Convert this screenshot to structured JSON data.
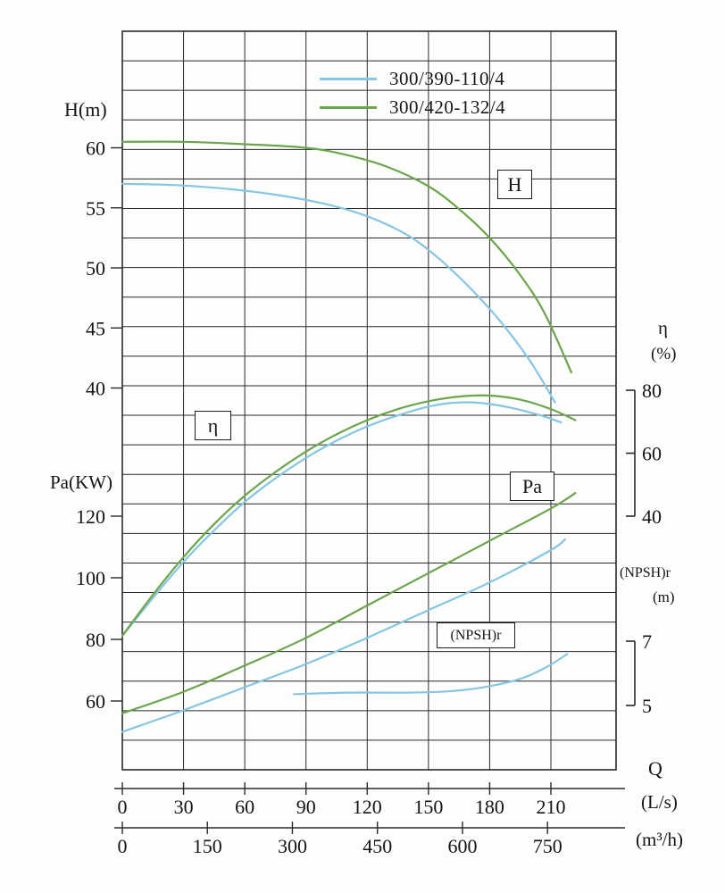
{
  "page": {
    "background": "#fdfdfb",
    "ink": "#2a2a2a"
  },
  "chart_data": {
    "type": "line",
    "title": "",
    "legend": [
      {
        "label": "300/390-110/4",
        "color": "#85c6e4"
      },
      {
        "label": "300/420-132/4",
        "color": "#6ba54e"
      }
    ],
    "x_axis": {
      "label": "Q",
      "primary_unit": {
        "label": "(L/s)",
        "ticks": [
          0,
          30,
          60,
          90,
          120,
          150,
          180,
          210
        ]
      },
      "secondary_unit": {
        "label": "(m³/h)",
        "ticks": [
          0,
          150,
          300,
          450,
          600,
          750
        ]
      },
      "range_ls": [
        0,
        242
      ]
    },
    "y_axes": {
      "H": {
        "title": "H(m)",
        "ticks": [
          60,
          55,
          50,
          45,
          40
        ],
        "range": [
          40,
          60
        ]
      },
      "Pa": {
        "title": "Pa(KW)",
        "ticks": [
          120,
          100,
          80,
          60
        ],
        "range": [
          60,
          120
        ]
      },
      "eta": {
        "title": "η",
        "unit": "(%)",
        "ticks": [
          80,
          60,
          40
        ],
        "range": [
          40,
          80
        ]
      },
      "npsh": {
        "title": "(NPSH)r",
        "unit": "(m)",
        "ticks": [
          7,
          5
        ],
        "range": [
          5,
          7
        ]
      }
    },
    "inplot_labels": [
      {
        "text": "H"
      },
      {
        "text": "η"
      },
      {
        "text": "Pa"
      },
      {
        "text": "(NPSH)r"
      }
    ],
    "grid": {
      "on": true,
      "h_divisions": 25
    },
    "series": [
      {
        "name": "H 300/390-110/4",
        "axis": "H",
        "color": "#85c6e4",
        "points": [
          [
            0,
            57.0
          ],
          [
            25,
            56.9
          ],
          [
            50,
            56.6
          ],
          [
            75,
            56.1
          ],
          [
            100,
            55.3
          ],
          [
            120,
            54.3
          ],
          [
            140,
            52.7
          ],
          [
            155,
            50.8
          ],
          [
            170,
            48.4
          ],
          [
            185,
            45.6
          ],
          [
            200,
            42.2
          ],
          [
            212,
            38.8
          ]
        ]
      },
      {
        "name": "H 300/420-132/4",
        "axis": "H",
        "color": "#6ba54e",
        "points": [
          [
            0,
            60.5
          ],
          [
            30,
            60.5
          ],
          [
            60,
            60.3
          ],
          [
            90,
            60.0
          ],
          [
            110,
            59.4
          ],
          [
            130,
            58.4
          ],
          [
            150,
            56.8
          ],
          [
            165,
            54.9
          ],
          [
            180,
            52.5
          ],
          [
            195,
            49.4
          ],
          [
            207,
            46.2
          ],
          [
            220,
            41.3
          ]
        ]
      },
      {
        "name": "eta 300/390-110/4",
        "axis": "eta",
        "color": "#85c6e4",
        "points": [
          [
            0,
            2
          ],
          [
            15,
            14
          ],
          [
            30,
            25.5
          ],
          [
            45,
            35.5
          ],
          [
            60,
            44.5
          ],
          [
            75,
            52
          ],
          [
            90,
            58.5
          ],
          [
            105,
            64
          ],
          [
            120,
            68.5
          ],
          [
            135,
            72
          ],
          [
            150,
            74.8
          ],
          [
            162,
            76
          ],
          [
            175,
            76
          ],
          [
            190,
            74.5
          ],
          [
            205,
            72
          ],
          [
            215,
            69.8
          ]
        ]
      },
      {
        "name": "eta 300/420-132/4",
        "axis": "eta",
        "color": "#6ba54e",
        "points": [
          [
            0,
            2
          ],
          [
            15,
            15
          ],
          [
            30,
            27
          ],
          [
            45,
            37.5
          ],
          [
            60,
            46.5
          ],
          [
            75,
            54
          ],
          [
            90,
            60.5
          ],
          [
            105,
            66
          ],
          [
            120,
            70.5
          ],
          [
            135,
            74
          ],
          [
            150,
            76.5
          ],
          [
            165,
            78
          ],
          [
            180,
            78.3
          ],
          [
            195,
            77
          ],
          [
            210,
            74
          ],
          [
            222,
            70.5
          ]
        ]
      },
      {
        "name": "Pa 300/390-110/4",
        "axis": "Pa",
        "color": "#85c6e4",
        "points": [
          [
            0,
            50
          ],
          [
            30,
            57
          ],
          [
            60,
            64.5
          ],
          [
            90,
            72
          ],
          [
            120,
            80.5
          ],
          [
            150,
            89.5
          ],
          [
            180,
            98.5
          ],
          [
            210,
            109
          ],
          [
            217,
            112.5
          ]
        ]
      },
      {
        "name": "Pa 300/420-132/4",
        "axis": "Pa",
        "color": "#6ba54e",
        "points": [
          [
            0,
            56
          ],
          [
            30,
            63
          ],
          [
            60,
            71.5
          ],
          [
            90,
            80.5
          ],
          [
            120,
            91
          ],
          [
            150,
            101.5
          ],
          [
            180,
            112
          ],
          [
            210,
            122.5
          ],
          [
            222,
            127.5
          ]
        ]
      },
      {
        "name": "NPSHr 300/390-110/4",
        "axis": "npsh",
        "color": "#85c6e4",
        "points": [
          [
            84,
            5.35
          ],
          [
            110,
            5.4
          ],
          [
            140,
            5.4
          ],
          [
            162,
            5.45
          ],
          [
            180,
            5.6
          ],
          [
            196,
            5.85
          ],
          [
            208,
            6.2
          ],
          [
            218,
            6.6
          ]
        ]
      }
    ]
  }
}
